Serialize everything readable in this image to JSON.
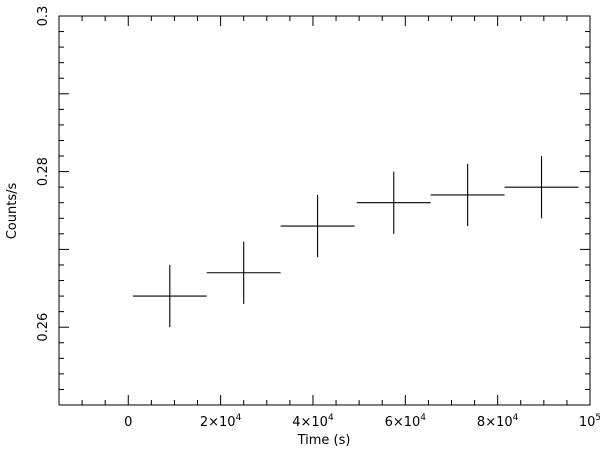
{
  "chart_data": {
    "type": "scatter",
    "title": "",
    "xlabel": "Time (s)",
    "ylabel": "Counts/s",
    "xlim": [
      -15000,
      100000
    ],
    "ylim": [
      0.25,
      0.3
    ],
    "grid": false,
    "x_ticks": [
      {
        "value": 0,
        "mantissa": "0",
        "exp": ""
      },
      {
        "value": 20000,
        "mantissa": "2×10",
        "exp": "4"
      },
      {
        "value": 40000,
        "mantissa": "4×10",
        "exp": "4"
      },
      {
        "value": 60000,
        "mantissa": "6×10",
        "exp": "4"
      },
      {
        "value": 80000,
        "mantissa": "8×10",
        "exp": "4"
      },
      {
        "value": 100000,
        "mantissa": "10",
        "exp": "5"
      }
    ],
    "y_tick_labels": [
      {
        "value": 0.26,
        "label": "0.26"
      },
      {
        "value": 0.28,
        "label": "0.28"
      },
      {
        "value": 0.3,
        "label": "0.3"
      }
    ],
    "y_ticks": [
      0.25,
      0.26,
      0.27,
      0.28,
      0.29,
      0.3
    ],
    "points": [
      {
        "x": 9000,
        "xerr": 8000,
        "y": 0.264,
        "yerr": 0.004
      },
      {
        "x": 25000,
        "xerr": 8000,
        "y": 0.267,
        "yerr": 0.004
      },
      {
        "x": 41000,
        "xerr": 8000,
        "y": 0.273,
        "yerr": 0.004
      },
      {
        "x": 57500,
        "xerr": 8000,
        "y": 0.276,
        "yerr": 0.004
      },
      {
        "x": 73500,
        "xerr": 8000,
        "y": 0.277,
        "yerr": 0.004
      },
      {
        "x": 89500,
        "xerr": 8000,
        "y": 0.278,
        "yerr": 0.004
      }
    ]
  }
}
